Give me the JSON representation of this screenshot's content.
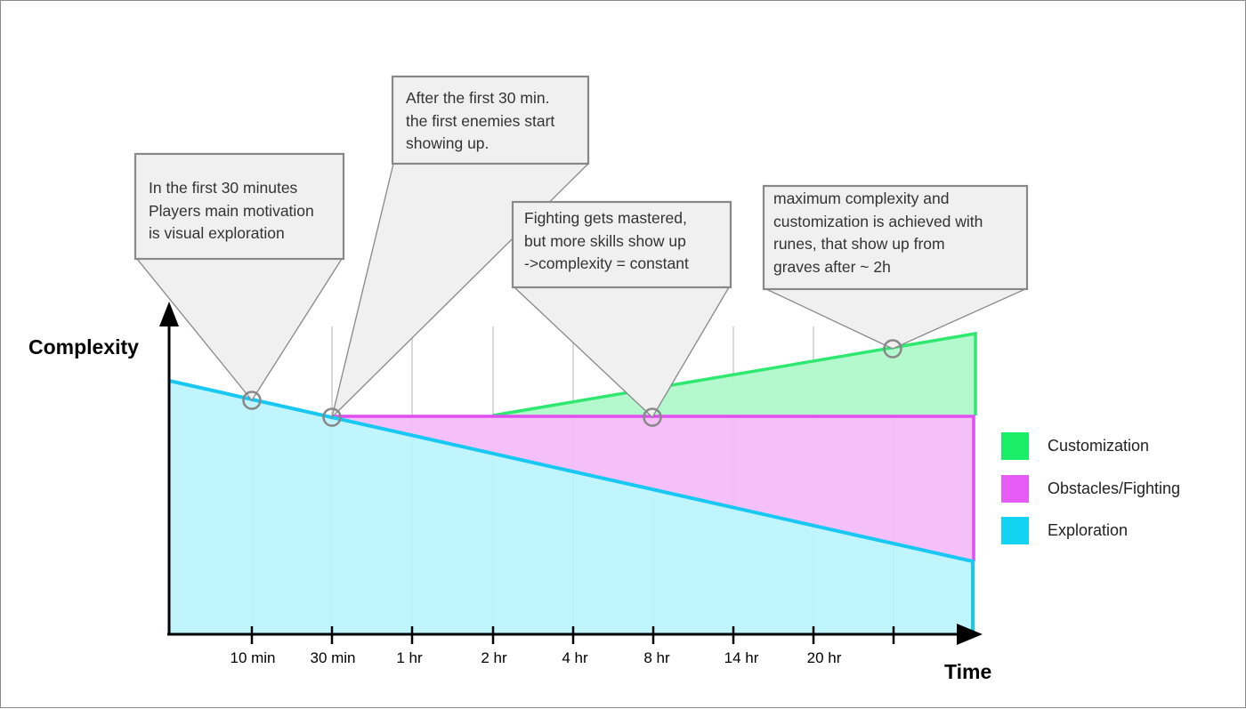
{
  "axes": {
    "y_label": "Complexity",
    "x_label": "Time",
    "x_ticks": [
      "10 min",
      "30 min",
      "1 hr",
      "2 hr",
      "4 hr",
      "8 hr",
      "14 hr",
      "20 hr"
    ]
  },
  "callouts": [
    {
      "lines": [
        "In the first 30 minutes",
        "Players main motivation",
        "is visual exploration"
      ]
    },
    {
      "lines": [
        "After the first 30 min.",
        "the first enemies start",
        "showing up."
      ]
    },
    {
      "lines": [
        "Fighting gets mastered,",
        "but more skills show up",
        "->complexity = constant"
      ]
    },
    {
      "lines": [
        "maximum complexity and",
        "customization is achieved with",
        "runes, that show up from",
        "graves after ~ 2h"
      ]
    }
  ],
  "legend": [
    {
      "label": "Customization",
      "color": "#1aee66"
    },
    {
      "label": "Obstacles/Fighting",
      "color": "#e65af5"
    },
    {
      "label": "Exploration",
      "color": "#13d3f3"
    }
  ],
  "colors": {
    "exploration_fill": "#bdf4fd",
    "exploration_line": "#18c8f2",
    "fighting_fill": "#f4bdfa",
    "fighting_line": "#e04df0",
    "customization_fill": "#b0f8ca",
    "customization_line": "#2ee870",
    "callout_fill": "#f0f0f0",
    "callout_stroke": "#888888"
  }
}
